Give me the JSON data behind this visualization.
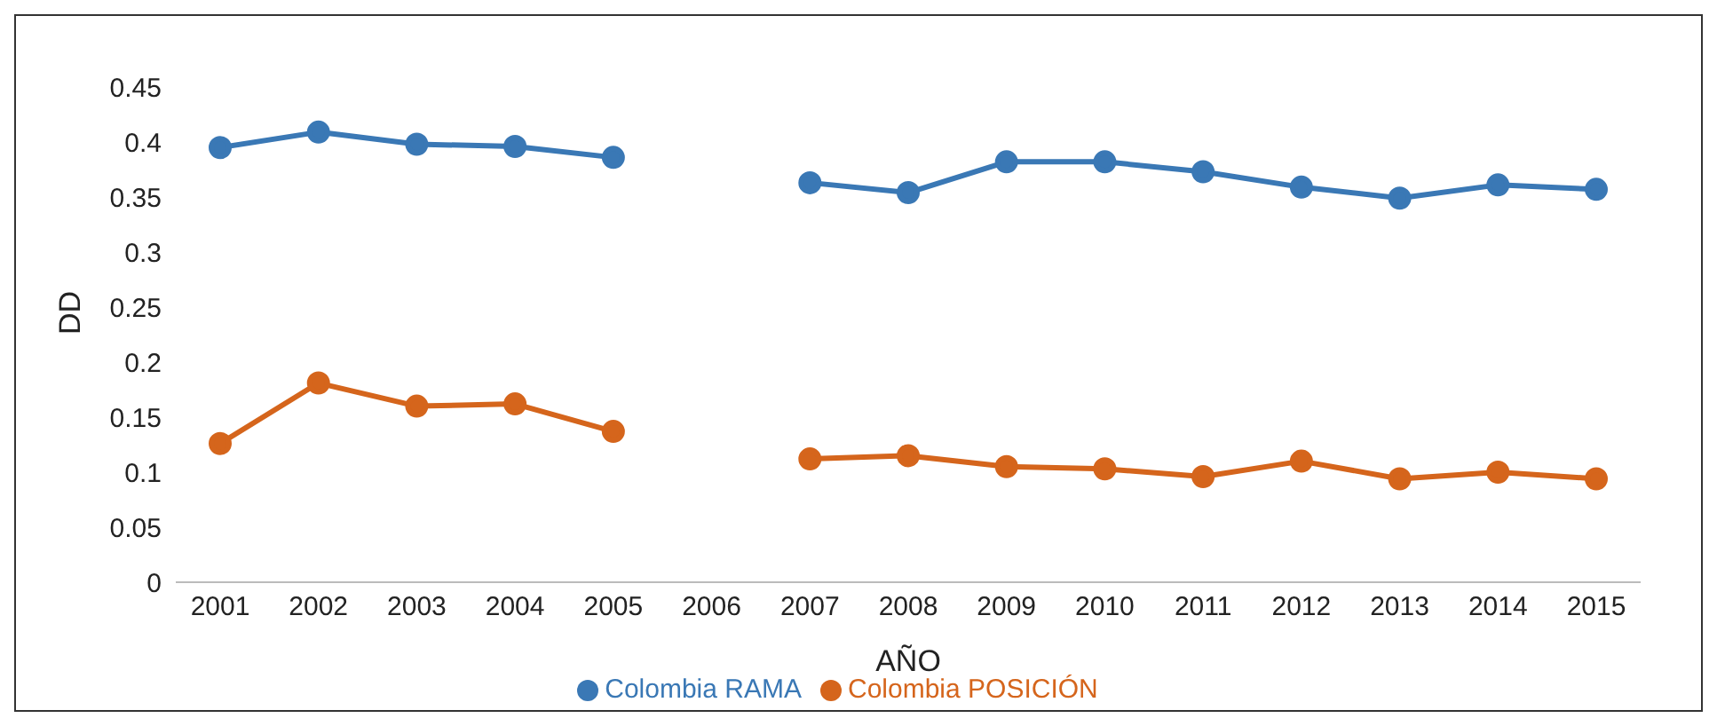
{
  "chart_data": {
    "type": "line",
    "xlabel": "AÑO",
    "ylabel": "DD",
    "categories": [
      "2001",
      "2002",
      "2003",
      "2004",
      "2005",
      "2006",
      "2007",
      "2008",
      "2009",
      "2010",
      "2011",
      "2012",
      "2013",
      "2014",
      "2015"
    ],
    "series": [
      {
        "name": "Colombia RAMA",
        "color": "#3a78b5",
        "values": [
          0.395,
          0.409,
          0.398,
          0.396,
          0.386,
          null,
          0.363,
          0.354,
          0.382,
          0.382,
          0.373,
          0.359,
          0.349,
          0.361,
          0.357
        ]
      },
      {
        "name": "Colombia POSICIÓN",
        "color": "#d5651c",
        "values": [
          0.126,
          0.181,
          0.16,
          0.162,
          0.137,
          null,
          0.112,
          0.115,
          0.105,
          0.103,
          0.096,
          0.11,
          0.094,
          0.1,
          0.094
        ]
      }
    ],
    "ylim": [
      0,
      0.45
    ],
    "yticks": [
      0,
      0.05,
      0.1,
      0.15,
      0.2,
      0.25,
      0.3,
      0.35,
      0.4,
      0.45
    ],
    "grid": false,
    "legend": "bottom",
    "marker": "circle",
    "line_style": "solid"
  }
}
